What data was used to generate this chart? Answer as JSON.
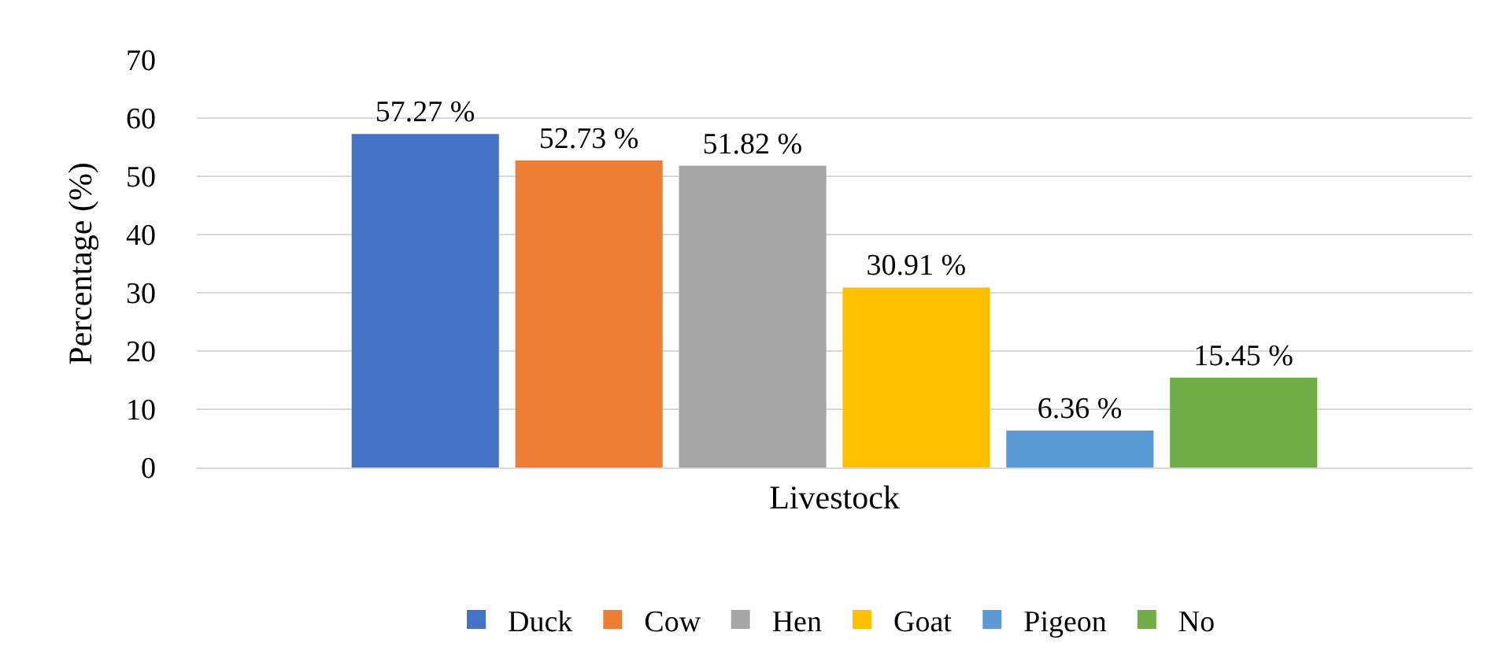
{
  "chart_data": {
    "type": "bar",
    "ylabel": "Percentage (%)",
    "categories": [
      "Livestock"
    ],
    "series": [
      {
        "name": "Duck",
        "color": "#4472c4",
        "values": [
          57.27
        ],
        "value_labels": [
          "57.27 %"
        ]
      },
      {
        "name": "Cow",
        "color": "#ed7d31",
        "values": [
          52.73
        ],
        "value_labels": [
          "52.73 %"
        ]
      },
      {
        "name": "Hen",
        "color": "#a5a5a5",
        "values": [
          51.82
        ],
        "value_labels": [
          "51.82 %"
        ]
      },
      {
        "name": "Goat",
        "color": "#ffc000",
        "values": [
          30.91
        ],
        "value_labels": [
          "30.91 %"
        ]
      },
      {
        "name": "Pigeon",
        "color": "#5b9bd5",
        "values": [
          6.36
        ],
        "value_labels": [
          "6.36 %"
        ]
      },
      {
        "name": "No",
        "color": "#70ad47",
        "values": [
          15.45
        ],
        "value_labels": [
          "15.45 %"
        ]
      }
    ],
    "ylim": [
      0,
      70
    ],
    "yticks": [
      0,
      10,
      20,
      30,
      40,
      50,
      60,
      70
    ],
    "grid": "y",
    "legend": "bottom"
  }
}
